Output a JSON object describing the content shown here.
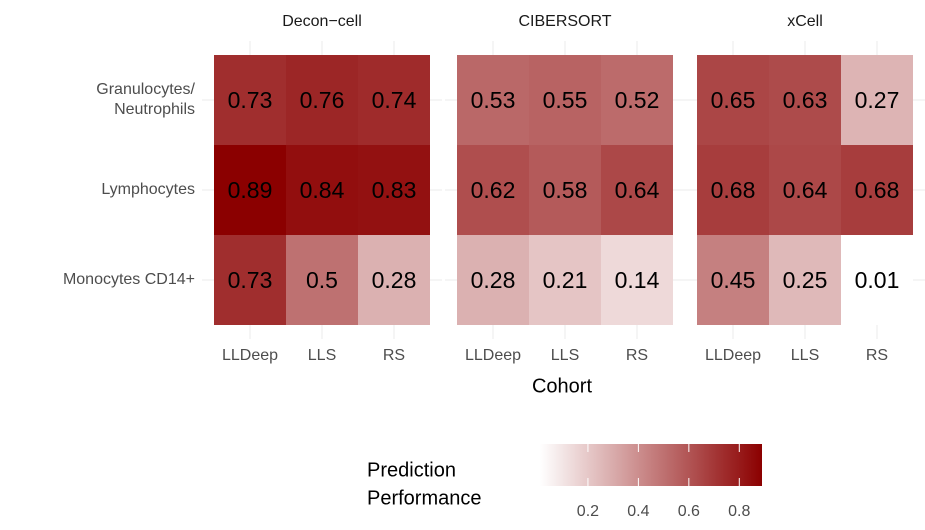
{
  "chart_data": {
    "type": "heatmap",
    "x_categories": [
      "LLDeep",
      "LLS",
      "RS"
    ],
    "y_categories": [
      "Granulocytes/\nNeutrophils",
      "Lymphocytes",
      "Monocytes CD14+"
    ],
    "xlabel": "Cohort",
    "facets": [
      {
        "title": "Decon−cell",
        "values": [
          [
            0.73,
            0.76,
            0.74
          ],
          [
            0.89,
            0.84,
            0.83
          ],
          [
            0.73,
            0.5,
            0.28
          ]
        ]
      },
      {
        "title": "CIBERSORT",
        "values": [
          [
            0.53,
            0.55,
            0.52
          ],
          [
            0.62,
            0.58,
            0.64
          ],
          [
            0.28,
            0.21,
            0.14
          ]
        ]
      },
      {
        "title": "xCell",
        "values": [
          [
            0.65,
            0.63,
            0.27
          ],
          [
            0.68,
            0.64,
            0.68
          ],
          [
            0.45,
            0.25,
            0.01
          ]
        ]
      }
    ],
    "legend_title": [
      "Prediction",
      "Performance"
    ],
    "clim": [
      0.01,
      0.89
    ],
    "cticks": [
      0.2,
      0.4,
      0.6,
      0.8
    ],
    "low_color": "#ffffff",
    "high_color": "#8b0000",
    "grid": true
  }
}
